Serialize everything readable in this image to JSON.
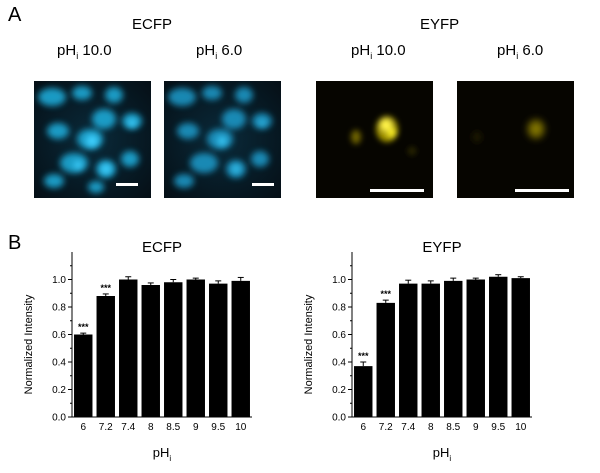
{
  "panel_a": {
    "letter": "A",
    "groups": [
      {
        "title": "ECFP",
        "images": [
          {
            "label_base": "pH",
            "label_sub": "i",
            "label_value": "10.0"
          },
          {
            "label_base": "pH",
            "label_sub": "i",
            "label_value": "6.0"
          }
        ],
        "color": "#1fb2e0"
      },
      {
        "title": "EYFP",
        "images": [
          {
            "label_base": "pH",
            "label_sub": "i",
            "label_value": "10.0"
          },
          {
            "label_base": "pH",
            "label_sub": "i",
            "label_value": "6.0"
          }
        ],
        "color": "#e8d800"
      }
    ]
  },
  "panel_b": {
    "letter": "B"
  },
  "chart_data": [
    {
      "type": "bar",
      "title": "ECFP",
      "xlabel_base": "pH",
      "xlabel_sub": "i",
      "ylabel": "Normalized Intensity",
      "categories": [
        "6",
        "7.2",
        "7.4",
        "8",
        "8.5",
        "9",
        "9.5",
        "10"
      ],
      "values": [
        0.6,
        0.88,
        1.0,
        0.96,
        0.98,
        1.0,
        0.97,
        0.99
      ],
      "errors": [
        0.01,
        0.015,
        0.02,
        0.015,
        0.02,
        0.01,
        0.02,
        0.025
      ],
      "annotations": [
        "***",
        "***",
        "",
        "",
        "",
        "",
        "",
        ""
      ],
      "yticks": [
        "0.0",
        "0.2",
        "0.4",
        "0.6",
        "0.8",
        "1.0"
      ],
      "ylim": [
        0,
        1.2
      ],
      "bar_color": "#000000"
    },
    {
      "type": "bar",
      "title": "EYFP",
      "xlabel_base": "pH",
      "xlabel_sub": "i",
      "ylabel": "Normalized Intensity",
      "categories": [
        "6",
        "7.2",
        "7.4",
        "8",
        "8.5",
        "9",
        "9.5",
        "10"
      ],
      "values": [
        0.37,
        0.83,
        0.97,
        0.97,
        0.99,
        1.0,
        1.02,
        1.01
      ],
      "errors": [
        0.03,
        0.02,
        0.025,
        0.02,
        0.02,
        0.01,
        0.015,
        0.01
      ],
      "annotations": [
        "***",
        "***",
        "",
        "",
        "",
        "",
        "",
        ""
      ],
      "yticks": [
        "0.0",
        "0.2",
        "0.4",
        "0.6",
        "0.8",
        "1.0"
      ],
      "ylim": [
        0,
        1.2
      ],
      "bar_color": "#000000"
    }
  ]
}
